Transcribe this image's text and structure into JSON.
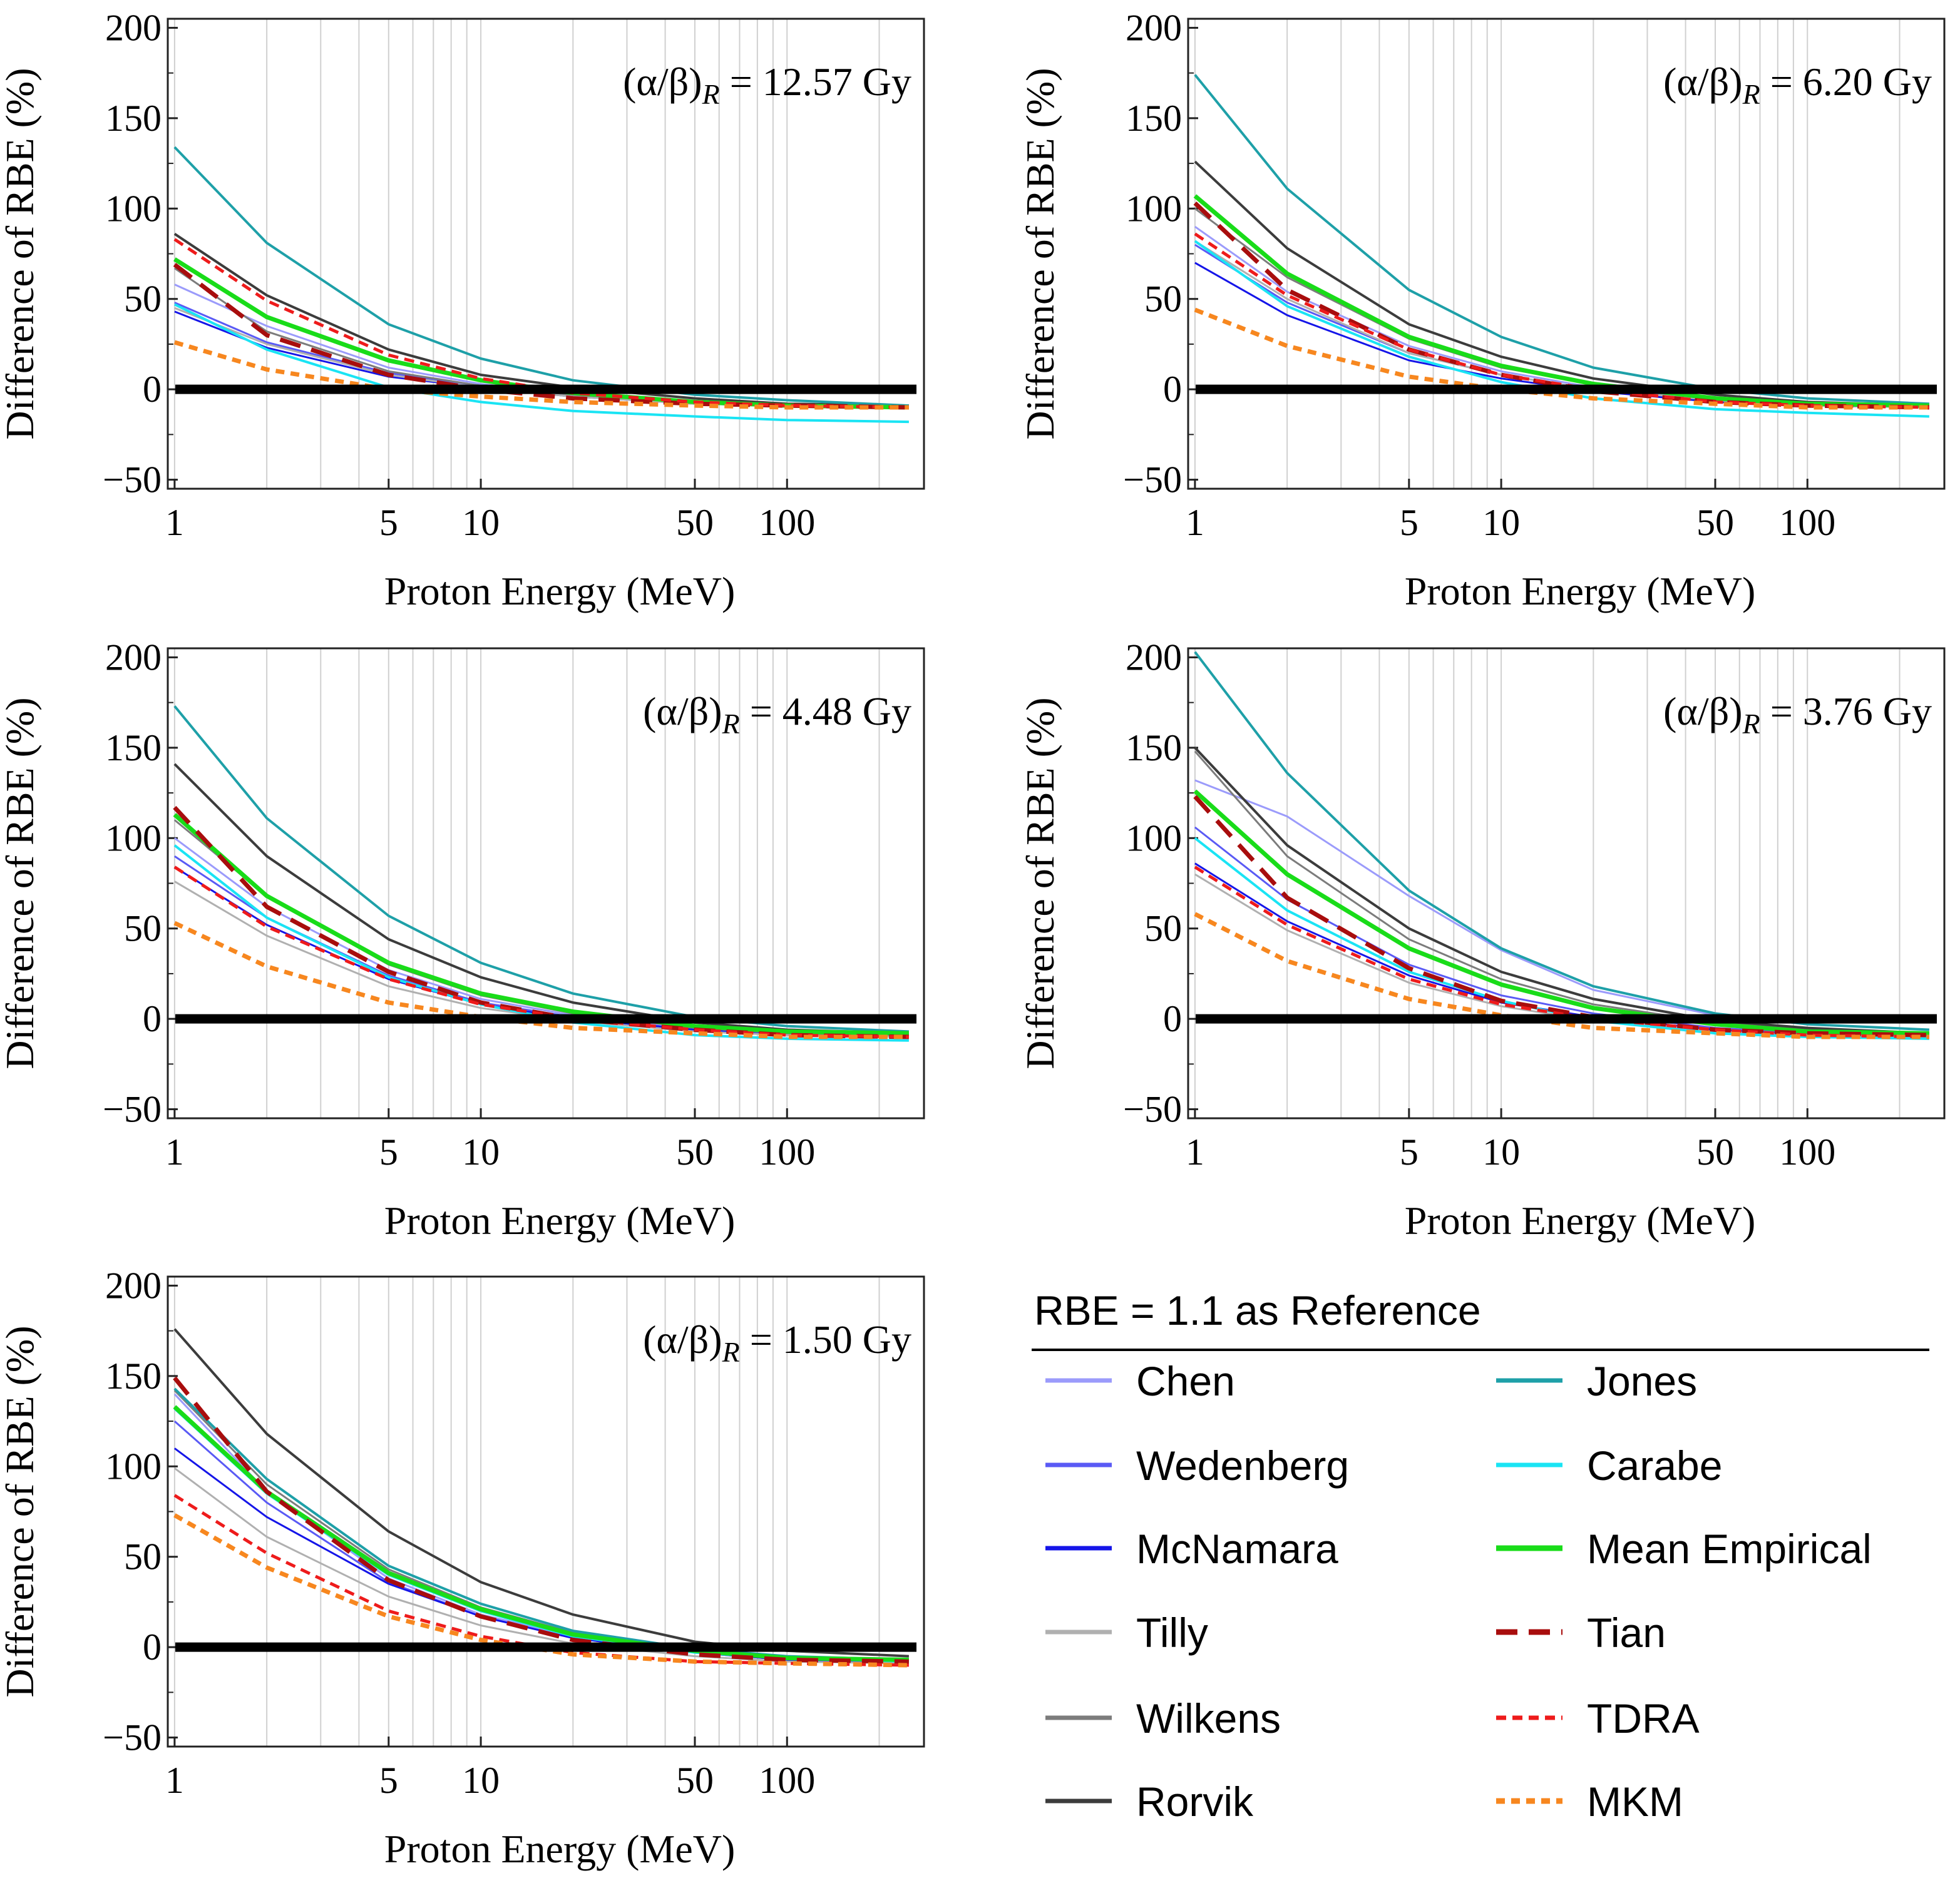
{
  "chart_data": {
    "type": "line",
    "xscale": "log",
    "xlabel": "Proton Energy (MeV)",
    "ylabel": "Difference of RBE (%)",
    "xlim": [
      0.95,
      280
    ],
    "ylim": [
      -55,
      205
    ],
    "xticks": [
      1,
      5,
      10,
      50,
      100
    ],
    "yticks": [
      -50,
      0,
      50,
      100,
      150,
      200
    ],
    "x": [
      1,
      2,
      5,
      10,
      20,
      50,
      100,
      250
    ],
    "reference": {
      "label": "RBE = 1.1 as Reference",
      "value": 0,
      "color": "#000000"
    },
    "styles": [
      {
        "name": "Chen",
        "color": "#9b9bfb",
        "width": 3,
        "dash": ""
      },
      {
        "name": "Wedenberg",
        "color": "#5a5af5",
        "width": 3,
        "dash": ""
      },
      {
        "name": "McNamara",
        "color": "#1515e8",
        "width": 3,
        "dash": ""
      },
      {
        "name": "Tilly",
        "color": "#b0b0b0",
        "width": 3,
        "dash": ""
      },
      {
        "name": "Wilkens",
        "color": "#7c7c7c",
        "width": 3,
        "dash": ""
      },
      {
        "name": "Rorvik",
        "color": "#3c3c3c",
        "width": 4,
        "dash": ""
      },
      {
        "name": "Jones",
        "color": "#1ea0a8",
        "width": 4,
        "dash": ""
      },
      {
        "name": "Carabe",
        "color": "#1ae4f4",
        "width": 4,
        "dash": ""
      },
      {
        "name": "Mean Empirical",
        "color": "#19dc19",
        "width": 7,
        "dash": ""
      },
      {
        "name": "Tian",
        "color": "#a80d0d",
        "width": 7,
        "dash": "34 18"
      },
      {
        "name": "TDRA",
        "color": "#ee1b1b",
        "width": 5,
        "dash": "16 10"
      },
      {
        "name": "MKM",
        "color": "#f7871f",
        "width": 7,
        "dash": "14 10"
      }
    ],
    "panels": [
      {
        "annotation": {
          "prefix": "(α/β)",
          "sub": "R",
          "value": " = 12.57 Gy"
        },
        "series": [
          {
            "name": "Chen",
            "values": [
              58,
              35,
              12,
              3,
              -3,
              -7,
              -9,
              -10
            ]
          },
          {
            "name": "Wedenberg",
            "values": [
              48,
              26,
              9,
              2,
              -4,
              -7,
              -9,
              -10
            ]
          },
          {
            "name": "McNamara",
            "values": [
              43,
              23,
              7,
              1,
              -4,
              -8,
              -9,
              -10
            ]
          },
          {
            "name": "Tilly",
            "values": [
              45,
              25,
              8,
              1,
              -4,
              -8,
              -9,
              -10
            ]
          },
          {
            "name": "Wilkens",
            "values": [
              67,
              32,
              10,
              2,
              -3,
              -7,
              -9,
              -10
            ]
          },
          {
            "name": "Rorvik",
            "values": [
              86,
              52,
              22,
              8,
              1,
              -5,
              -8,
              -9
            ]
          },
          {
            "name": "Jones",
            "values": [
              134,
              81,
              36,
              17,
              5,
              -3,
              -6,
              -9
            ]
          },
          {
            "name": "Carabe",
            "values": [
              47,
              22,
              1,
              -7,
              -12,
              -15,
              -17,
              -18
            ]
          },
          {
            "name": "Mean Empirical",
            "values": [
              72,
              40,
              16,
              5,
              -2,
              -7,
              -9,
              -10
            ]
          },
          {
            "name": "Tian",
            "values": [
              69,
              30,
              8,
              0,
              -5,
              -8,
              -9,
              -10
            ]
          },
          {
            "name": "TDRA",
            "values": [
              83,
              49,
              19,
              6,
              -2,
              -7,
              -9,
              -10
            ]
          },
          {
            "name": "MKM",
            "values": [
              26,
              11,
              0,
              -4,
              -7,
              -9,
              -10,
              -10
            ]
          }
        ]
      },
      {
        "annotation": {
          "prefix": "(α/β)",
          "sub": "R",
          "value": " =  6.20 Gy"
        },
        "series": [
          {
            "name": "Chen",
            "values": [
              90,
              54,
              24,
              10,
              1,
              -6,
              -9,
              -10
            ]
          },
          {
            "name": "Wedenberg",
            "values": [
              80,
              48,
              20,
              8,
              0,
              -6,
              -9,
              -10
            ]
          },
          {
            "name": "McNamara",
            "values": [
              70,
              41,
              16,
              6,
              -1,
              -7,
              -9,
              -10
            ]
          },
          {
            "name": "Tilly",
            "values": [
              82,
              50,
              20,
              8,
              0,
              -6,
              -9,
              -10
            ]
          },
          {
            "name": "Wilkens",
            "values": [
              100,
              62,
              28,
              12,
              3,
              -5,
              -8,
              -9
            ]
          },
          {
            "name": "Rorvik",
            "values": [
              126,
              78,
              36,
              18,
              6,
              -3,
              -7,
              -9
            ]
          },
          {
            "name": "Jones",
            "values": [
              174,
              111,
              55,
              29,
              12,
              0,
              -5,
              -8
            ]
          },
          {
            "name": "Carabe",
            "values": [
              82,
              46,
              18,
              4,
              -5,
              -11,
              -13,
              -15
            ]
          },
          {
            "name": "Mean Empirical",
            "values": [
              107,
              64,
              29,
              13,
              3,
              -5,
              -8,
              -9
            ]
          },
          {
            "name": "Tian",
            "values": [
              103,
              55,
              22,
              8,
              -1,
              -7,
              -9,
              -10
            ]
          },
          {
            "name": "TDRA",
            "values": [
              86,
              52,
              22,
              8,
              0,
              -7,
              -9,
              -10
            ]
          },
          {
            "name": "MKM",
            "values": [
              44,
              24,
              7,
              0,
              -5,
              -8,
              -10,
              -10
            ]
          }
        ]
      },
      {
        "annotation": {
          "prefix": "(α/β)",
          "sub": "R",
          "value": " = 4.48 Gy"
        },
        "series": [
          {
            "name": "Chen",
            "values": [
              100,
              62,
              27,
              11,
              2,
              -5,
              -8,
              -9
            ]
          },
          {
            "name": "Wedenberg",
            "values": [
              90,
              56,
              24,
              9,
              1,
              -6,
              -9,
              -10
            ]
          },
          {
            "name": "McNamara",
            "values": [
              84,
              52,
              22,
              8,
              0,
              -6,
              -9,
              -10
            ]
          },
          {
            "name": "Tilly",
            "values": [
              76,
              46,
              18,
              6,
              -1,
              -7,
              -9,
              -10
            ]
          },
          {
            "name": "Wilkens",
            "values": [
              110,
              68,
              30,
              13,
              3,
              -5,
              -8,
              -9
            ]
          },
          {
            "name": "Rorvik",
            "values": [
              141,
              90,
              44,
              23,
              9,
              -2,
              -6,
              -8
            ]
          },
          {
            "name": "Jones",
            "values": [
              173,
              111,
              57,
              31,
              14,
              1,
              -4,
              -7
            ]
          },
          {
            "name": "Carabe",
            "values": [
              96,
              56,
              23,
              8,
              -2,
              -9,
              -11,
              -12
            ]
          },
          {
            "name": "Mean Empirical",
            "values": [
              113,
              68,
              31,
              14,
              4,
              -4,
              -7,
              -8
            ]
          },
          {
            "name": "Tian",
            "values": [
              117,
              62,
              26,
              9,
              0,
              -6,
              -9,
              -10
            ]
          },
          {
            "name": "TDRA",
            "values": [
              84,
              51,
              22,
              8,
              0,
              -6,
              -9,
              -10
            ]
          },
          {
            "name": "MKM",
            "values": [
              53,
              29,
              9,
              1,
              -5,
              -8,
              -10,
              -10
            ]
          }
        ]
      },
      {
        "annotation": {
          "prefix": "(α/β)",
          "sub": "R",
          "value": " = 3.76 Gy"
        },
        "series": [
          {
            "name": "Chen",
            "values": [
              132,
              112,
              68,
              38,
              16,
              2,
              -3,
              -6
            ]
          },
          {
            "name": "Wedenberg",
            "values": [
              106,
              66,
              30,
              13,
              3,
              -5,
              -8,
              -9
            ]
          },
          {
            "name": "McNamara",
            "values": [
              86,
              54,
              24,
              9,
              1,
              -6,
              -9,
              -10
            ]
          },
          {
            "name": "Tilly",
            "values": [
              80,
              49,
              20,
              7,
              -1,
              -7,
              -9,
              -10
            ]
          },
          {
            "name": "Wilkens",
            "values": [
              148,
              90,
              44,
              22,
              8,
              -2,
              -6,
              -8
            ]
          },
          {
            "name": "Rorvik",
            "values": [
              150,
              96,
              50,
              26,
              11,
              -1,
              -5,
              -8
            ]
          },
          {
            "name": "Jones",
            "values": [
              203,
              136,
              71,
              39,
              18,
              3,
              -3,
              -6
            ]
          },
          {
            "name": "Carabe",
            "values": [
              100,
              60,
              26,
              10,
              -1,
              -8,
              -10,
              -11
            ]
          },
          {
            "name": "Mean Empirical",
            "values": [
              126,
              80,
              39,
              19,
              6,
              -3,
              -7,
              -8
            ]
          },
          {
            "name": "Tian",
            "values": [
              123,
              67,
              28,
              10,
              1,
              -6,
              -8,
              -9
            ]
          },
          {
            "name": "TDRA",
            "values": [
              84,
              52,
              22,
              8,
              0,
              -6,
              -9,
              -10
            ]
          },
          {
            "name": "MKM",
            "values": [
              58,
              32,
              11,
              2,
              -5,
              -8,
              -10,
              -10
            ]
          }
        ]
      },
      {
        "annotation": {
          "prefix": "(α/β)",
          "sub": "R",
          "value": " = 1.50 Gy"
        },
        "series": [
          {
            "name": "Chen",
            "values": [
              140,
              86,
              38,
              18,
              6,
              -3,
              -7,
              -8
            ]
          },
          {
            "name": "Wedenberg",
            "values": [
              125,
              80,
              36,
              17,
              5,
              -3,
              -7,
              -8
            ]
          },
          {
            "name": "McNamara",
            "values": [
              110,
              72,
              35,
              17,
              5,
              -3,
              -7,
              -8
            ]
          },
          {
            "name": "Tilly",
            "values": [
              99,
              61,
              28,
              12,
              2,
              -5,
              -8,
              -9
            ]
          },
          {
            "name": "Wilkens",
            "values": [
              142,
              90,
              43,
              22,
              8,
              -1,
              -5,
              -7
            ]
          },
          {
            "name": "Rorvik",
            "values": [
              176,
              118,
              64,
              36,
              18,
              3,
              -2,
              -5
            ]
          },
          {
            "name": "Jones",
            "values": [
              143,
              93,
              45,
              24,
              9,
              -1,
              -5,
              -7
            ]
          },
          {
            "name": "Carabe",
            "values": [
              132,
              85,
              40,
              20,
              6,
              -3,
              -6,
              -8
            ]
          },
          {
            "name": "Mean Empirical",
            "values": [
              133,
              86,
              41,
              21,
              7,
              -2,
              -6,
              -7
            ]
          },
          {
            "name": "Tian",
            "values": [
              149,
              86,
              37,
              17,
              4,
              -4,
              -7,
              -8
            ]
          },
          {
            "name": "TDRA",
            "values": [
              84,
              52,
              20,
              6,
              -3,
              -8,
              -9,
              -10
            ]
          },
          {
            "name": "MKM",
            "values": [
              73,
              44,
              17,
              4,
              -4,
              -8,
              -9,
              -10
            ]
          }
        ]
      }
    ]
  },
  "legend": {
    "title": "RBE = 1.1 as Reference",
    "left_column": [
      "Chen",
      "Wedenberg",
      "McNamara",
      "Tilly",
      "Wilkens",
      "Rorvik"
    ],
    "right_column": [
      "Jones",
      "Carabe",
      "Mean Empirical",
      "Tian",
      "TDRA",
      "MKM"
    ]
  }
}
